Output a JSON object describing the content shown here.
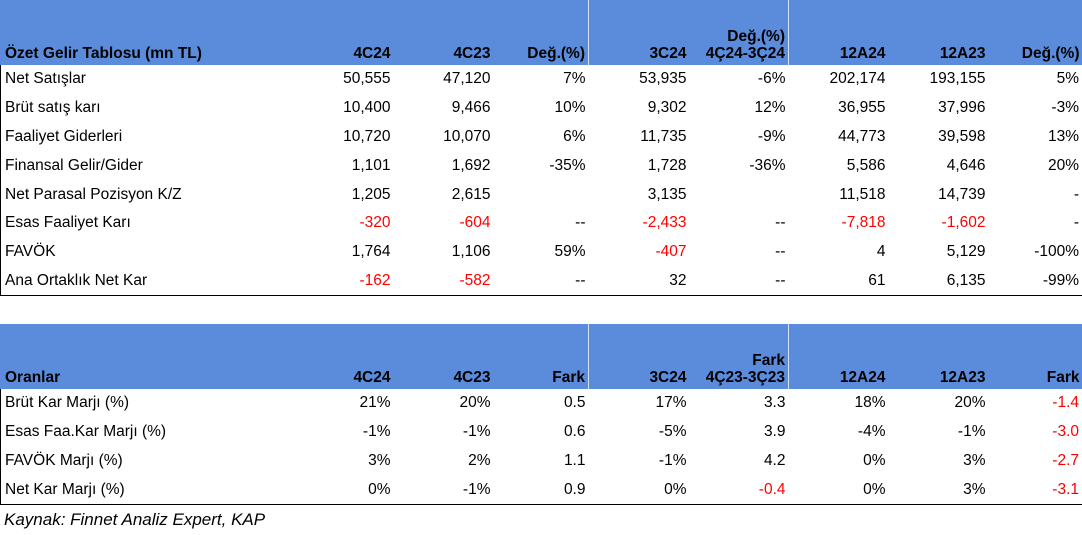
{
  "income": {
    "header": {
      "title": "Özet Gelir Tablosu (mn TL)",
      "cols": [
        "4C24",
        "4C23",
        "Değ.(%)",
        "3C24",
        "Değ.(%)\n4Ç24-3Ç24",
        "12A24",
        "12A23",
        "Değ.(%)"
      ]
    },
    "rows": [
      {
        "label": "Net Satışlar",
        "cells": [
          "50,555",
          "47,120",
          "7%",
          "53,935",
          "-6%",
          "202,174",
          "193,155",
          "5%"
        ]
      },
      {
        "label": "Brüt satış karı",
        "cells": [
          "10,400",
          "9,466",
          "10%",
          "9,302",
          "12%",
          "36,955",
          "37,996",
          "-3%"
        ]
      },
      {
        "label": "Faaliyet Giderleri",
        "cells": [
          "10,720",
          "10,070",
          "6%",
          "11,735",
          "-9%",
          "44,773",
          "39,598",
          "13%"
        ]
      },
      {
        "label": "Finansal Gelir/Gider",
        "cells": [
          "1,101",
          "1,692",
          "-35%",
          "1,728",
          "-36%",
          "5,586",
          "4,646",
          "20%"
        ]
      },
      {
        "label": "Net Parasal Pozisyon K/Z",
        "cells": [
          "1,205",
          "2,615",
          "",
          "3,135",
          "",
          "11,518",
          "14,739",
          "-"
        ]
      },
      {
        "label": "Esas Faaliyet Karı",
        "cells": [
          "-320",
          "-604",
          "--",
          "-2,433",
          "--",
          "-7,818",
          "-1,602",
          "-"
        ]
      },
      {
        "label": "FAVÖK",
        "cells": [
          "1,764",
          "1,106",
          "59%",
          "-407",
          "--",
          "4",
          "5,129",
          "-100%"
        ]
      },
      {
        "label": "Ana Ortaklık Net Kar",
        "cells": [
          "-162",
          "-582",
          "--",
          "32",
          "--",
          "61",
          "6,135",
          "-99%"
        ]
      }
    ],
    "red_cells": [
      [
        5,
        0
      ],
      [
        5,
        1
      ],
      [
        5,
        3
      ],
      [
        5,
        5
      ],
      [
        5,
        6
      ],
      [
        6,
        3
      ],
      [
        7,
        0
      ],
      [
        7,
        1
      ]
    ]
  },
  "ratios": {
    "header": {
      "title": "Oranlar",
      "cols": [
        "4C24",
        "4C23",
        "Fark",
        "3C24",
        "Fark\n4Ç23-3Ç23",
        "12A24",
        "12A23",
        "Fark"
      ]
    },
    "rows": [
      {
        "label": "Brüt Kar Marjı (%)",
        "cells": [
          "21%",
          "20%",
          "0.5",
          "17%",
          "3.3",
          "18%",
          "20%",
          "-1.4"
        ]
      },
      {
        "label": "Esas Faa.Kar Marjı (%)",
        "cells": [
          "-1%",
          "-1%",
          "0.6",
          "-5%",
          "3.9",
          "-4%",
          "-1%",
          "-3.0"
        ]
      },
      {
        "label": "FAVÖK Marjı (%)",
        "cells": [
          "3%",
          "2%",
          "1.1",
          "-1%",
          "4.2",
          "0%",
          "3%",
          "-2.7"
        ]
      },
      {
        "label": "Net Kar Marjı (%)",
        "cells": [
          "0%",
          "-1%",
          "0.9",
          "0%",
          "-0.4",
          "0%",
          "3%",
          "-3.1"
        ]
      }
    ],
    "red_cells": [
      [
        0,
        7
      ],
      [
        1,
        7
      ],
      [
        2,
        7
      ],
      [
        3,
        4
      ],
      [
        3,
        7
      ]
    ]
  },
  "source": "Kaynak: Finnet Analiz Expert, KAP",
  "colors": {
    "header_bg": "#5b8bdb",
    "negative": "#ff0000"
  }
}
